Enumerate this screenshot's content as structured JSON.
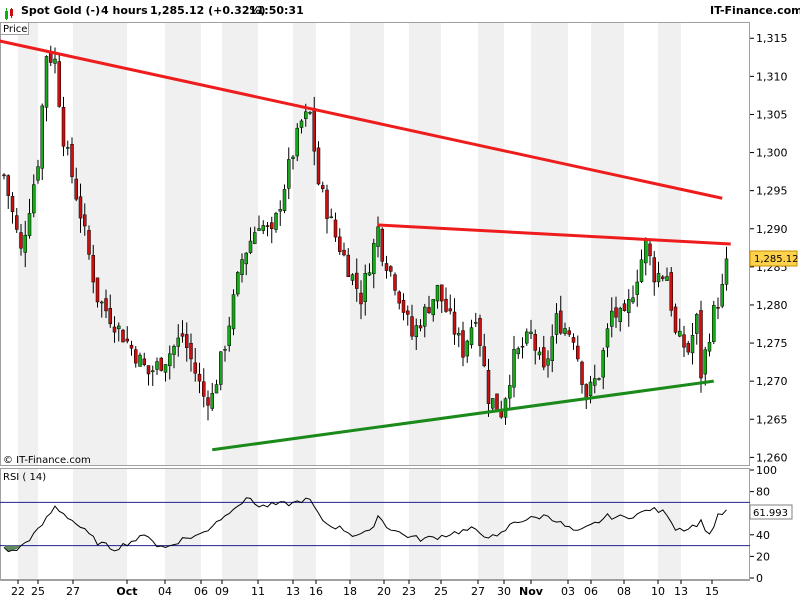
{
  "header": {
    "title": "Spot Gold (-)",
    "interval": "4 hours",
    "quote": "1,285.12 (+0.32%)",
    "time": "11:50:31",
    "brand": "IT-Finance.com"
  },
  "price_panel": {
    "label": "Price",
    "copyright": "© IT-Finance.com",
    "last_price_tag": "1,285.12",
    "y_ticks": [
      "1,315",
      "1,310",
      "1,305",
      "1,300",
      "1,295",
      "1,290",
      "1,285",
      "1,280",
      "1,275",
      "1,270",
      "1,265",
      "1,260"
    ]
  },
  "rsi_panel": {
    "label": "RSI ( 14)",
    "value_tag": "61.993",
    "y_ticks": [
      "100",
      "80",
      "60",
      "40",
      "20",
      "0"
    ]
  },
  "x_axis": {
    "ticks": [
      "22",
      "25",
      "27",
      "Oct",
      "04",
      "06",
      "09",
      "11",
      "13",
      "16",
      "18",
      "20",
      "23",
      "25",
      "27",
      "30",
      "Nov",
      "03",
      "06",
      "08",
      "10",
      "13",
      "15"
    ]
  },
  "colors": {
    "bull_candle": "#17a817",
    "bear_candle": "#c81010",
    "resistance_line": "#ee1c1c",
    "support_line": "#1a8a1a",
    "rsi_line": "#000000",
    "rsi_bands": "#202090",
    "price_tag_bg": "#ffd24d",
    "band_shade": "#f0f0f0"
  },
  "chart_data": {
    "type": "candlestick",
    "instrument": "Spot Gold (-)",
    "interval": "4 hours",
    "last_price": 1285.12,
    "change_pct": 0.32,
    "ylim": [
      1259,
      1317
    ],
    "close_path": [
      [
        0,
        1297
      ],
      [
        4,
        1287
      ],
      [
        8,
        1299
      ],
      [
        10,
        1313
      ],
      [
        12,
        1312
      ],
      [
        14,
        1302
      ],
      [
        18,
        1292
      ],
      [
        22,
        1281
      ],
      [
        28,
        1276
      ],
      [
        34,
        1271
      ],
      [
        38,
        1273
      ],
      [
        42,
        1276
      ],
      [
        47,
        1268
      ],
      [
        49,
        1268
      ],
      [
        52,
        1275
      ],
      [
        56,
        1286
      ],
      [
        60,
        1291
      ],
      [
        63,
        1289
      ],
      [
        67,
        1298
      ],
      [
        70,
        1304
      ],
      [
        72,
        1305
      ],
      [
        74,
        1296
      ],
      [
        78,
        1289
      ],
      [
        81,
        1285
      ],
      [
        84,
        1281
      ],
      [
        88,
        1290
      ],
      [
        89,
        1287
      ],
      [
        92,
        1283
      ],
      [
        96,
        1276
      ],
      [
        99,
        1279
      ],
      [
        102,
        1282
      ],
      [
        105,
        1278
      ],
      [
        108,
        1274
      ],
      [
        111,
        1279
      ],
      [
        114,
        1268
      ],
      [
        117,
        1266
      ],
      [
        120,
        1273
      ],
      [
        124,
        1276
      ],
      [
        127,
        1271
      ],
      [
        130,
        1278
      ],
      [
        134,
        1276
      ],
      [
        137,
        1268
      ],
      [
        140,
        1271
      ],
      [
        143,
        1279
      ],
      [
        146,
        1278
      ],
      [
        149,
        1284
      ],
      [
        151,
        1288
      ],
      [
        153,
        1284
      ],
      [
        156,
        1284
      ],
      [
        158,
        1276
      ],
      [
        161,
        1274
      ],
      [
        163,
        1278
      ],
      [
        164,
        1271
      ],
      [
        167,
        1279
      ],
      [
        169,
        1282
      ],
      [
        170,
        1285.12
      ]
    ],
    "trendlines": [
      {
        "name": "upper-resistance",
        "points": [
          [
            -4,
            1315
          ],
          [
            169,
            1294
          ]
        ]
      },
      {
        "name": "lower-resistance",
        "points": [
          [
            88,
            1290.5
          ],
          [
            171,
            1288
          ]
        ]
      },
      {
        "name": "support",
        "points": [
          [
            49,
            1261
          ],
          [
            167,
            1270
          ]
        ]
      }
    ],
    "rsi": {
      "period": 14,
      "last": 61.993,
      "overbought": 70,
      "oversold": 30,
      "ylim": [
        0,
        100
      ],
      "path": [
        [
          0,
          28
        ],
        [
          2,
          24
        ],
        [
          4,
          29
        ],
        [
          8,
          44
        ],
        [
          12,
          66
        ],
        [
          14,
          60
        ],
        [
          18,
          47
        ],
        [
          22,
          33
        ],
        [
          26,
          27
        ],
        [
          30,
          34
        ],
        [
          34,
          40
        ],
        [
          36,
          30
        ],
        [
          38,
          28
        ],
        [
          42,
          36
        ],
        [
          46,
          40
        ],
        [
          48,
          45
        ],
        [
          50,
          53
        ],
        [
          52,
          57
        ],
        [
          54,
          66
        ],
        [
          56,
          70
        ],
        [
          58,
          74
        ],
        [
          60,
          66
        ],
        [
          64,
          68
        ],
        [
          68,
          69
        ],
        [
          70,
          72
        ],
        [
          72,
          72
        ],
        [
          74,
          58
        ],
        [
          76,
          50
        ],
        [
          80,
          45
        ],
        [
          82,
          40
        ],
        [
          86,
          42
        ],
        [
          88,
          58
        ],
        [
          90,
          48
        ],
        [
          94,
          40
        ],
        [
          98,
          36
        ],
        [
          102,
          38
        ],
        [
          106,
          42
        ],
        [
          110,
          45
        ],
        [
          113,
          40
        ],
        [
          116,
          37
        ],
        [
          120,
          52
        ],
        [
          124,
          55
        ],
        [
          128,
          58
        ],
        [
          132,
          48
        ],
        [
          135,
          42
        ],
        [
          138,
          48
        ],
        [
          142,
          57
        ],
        [
          146,
          56
        ],
        [
          150,
          60
        ],
        [
          152,
          64
        ],
        [
          156,
          60
        ],
        [
          158,
          46
        ],
        [
          161,
          46
        ],
        [
          164,
          52
        ],
        [
          166,
          40
        ],
        [
          168,
          57
        ],
        [
          170,
          62
        ]
      ]
    }
  }
}
